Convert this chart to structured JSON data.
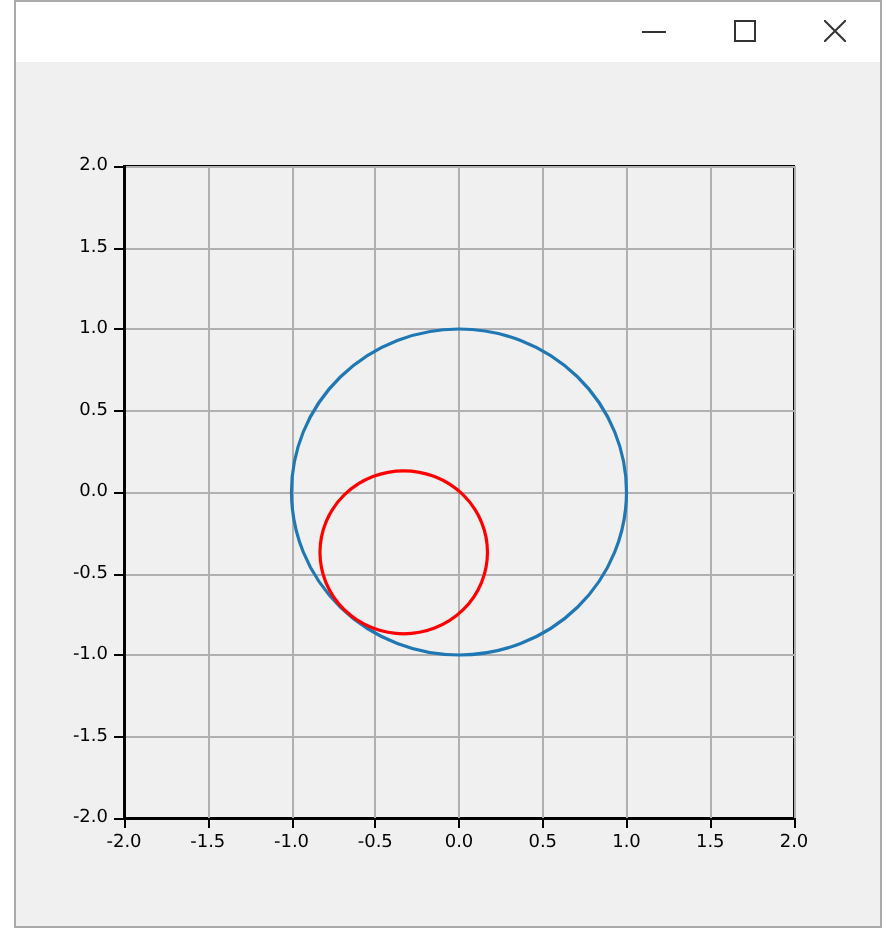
{
  "chart_data": {
    "type": "line",
    "xlim": [
      -2,
      2
    ],
    "ylim": [
      -2,
      2
    ],
    "xticks": [
      {
        "value": -2,
        "label": "-2.0"
      },
      {
        "value": -1.5,
        "label": "-1.5"
      },
      {
        "value": -1,
        "label": "-1.0"
      },
      {
        "value": -0.5,
        "label": "-0.5"
      },
      {
        "value": 0,
        "label": "0.0"
      },
      {
        "value": 0.5,
        "label": "0.5"
      },
      {
        "value": 1,
        "label": "1.0"
      },
      {
        "value": 1.5,
        "label": "1.5"
      },
      {
        "value": 2,
        "label": "2.0"
      }
    ],
    "yticks": [
      {
        "value": -2,
        "label": "-2.0"
      },
      {
        "value": -1.5,
        "label": "-1.5"
      },
      {
        "value": -1,
        "label": "-1.0"
      },
      {
        "value": -0.5,
        "label": "-0.5"
      },
      {
        "value": 0,
        "label": "0.0"
      },
      {
        "value": 0.5,
        "label": "0.5"
      },
      {
        "value": 1,
        "label": "1.0"
      },
      {
        "value": 1.5,
        "label": "1.5"
      },
      {
        "value": 2,
        "label": "2.0"
      }
    ],
    "grid": true
  }
}
